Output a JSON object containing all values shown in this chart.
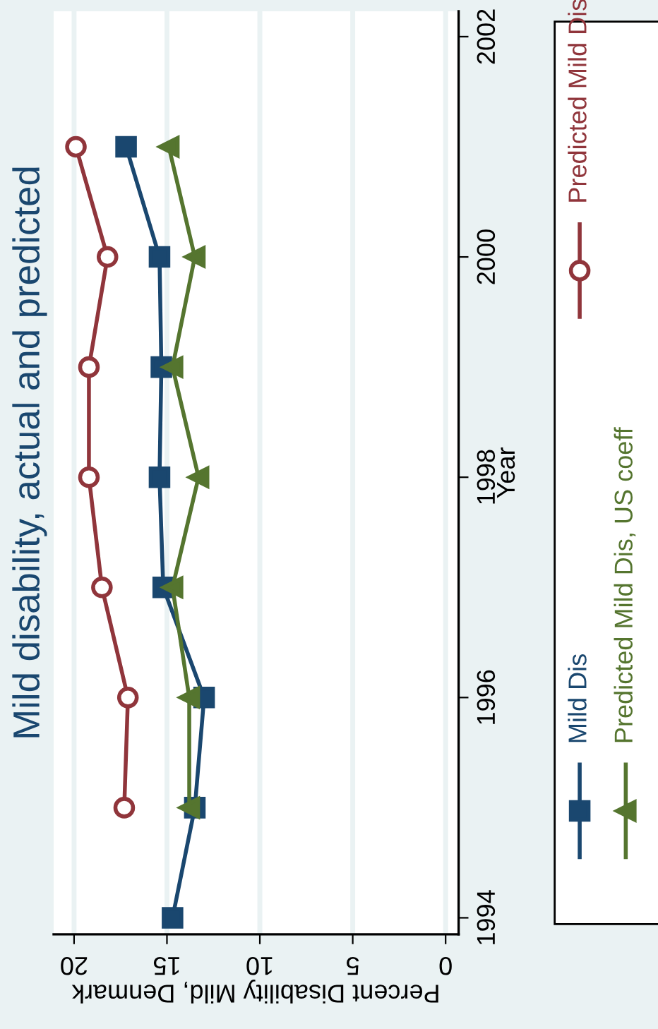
{
  "chart_data": {
    "type": "line",
    "title": "Mild disability, actual and predicted",
    "xlabel": "Percent Disability Mild, Denmark",
    "ylabel": "Year",
    "series": [
      {
        "name": "Mild Dis",
        "color": "#1a476f",
        "marker": "square",
        "x": [
          14.7,
          13.5,
          13.0,
          15.2,
          15.4,
          15.3,
          15.4,
          17.2
        ],
        "values": [
          1994,
          1995,
          1996,
          1997,
          1998,
          1999,
          2000,
          2001
        ]
      },
      {
        "name": "Predicted Mild Dis, US coeff",
        "color": "#55752f",
        "marker": "triangle",
        "x": [
          13.8,
          13.8,
          14.7,
          13.3,
          14.7,
          13.5,
          14.9
        ],
        "values": [
          1995,
          1996,
          1997,
          1998,
          1999,
          2000,
          2001
        ]
      },
      {
        "name": "Predicted Mild Dis",
        "color": "#90353b",
        "marker": "circle",
        "x": [
          17.3,
          17.1,
          18.5,
          19.2,
          19.2,
          18.2,
          19.9
        ],
        "values": [
          1995,
          1996,
          1997,
          1998,
          1999,
          2000,
          2001
        ]
      }
    ],
    "xlim": [
      21.1,
      -0.7
    ],
    "xticks": [
      0,
      5,
      10,
      15,
      20
    ],
    "ylim": [
      1993.85,
      2002.23
    ],
    "yticks": [
      1994,
      1996,
      1998,
      2000,
      2002
    ],
    "grid": "x",
    "legend": "right"
  }
}
